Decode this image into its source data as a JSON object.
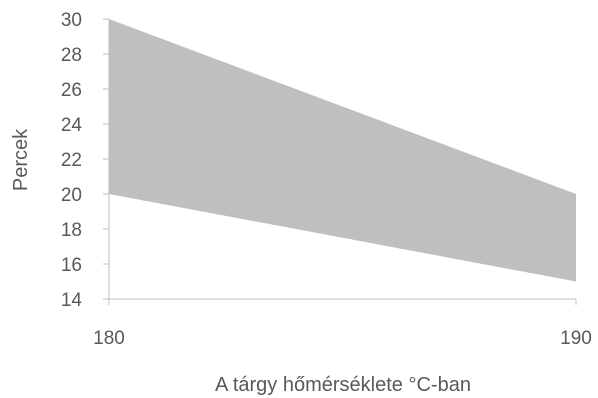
{
  "chart_data": {
    "type": "area",
    "title": "",
    "xlabel": "A tárgy hőmérséklete °C-ban",
    "ylabel": "Percek",
    "x": [
      180,
      190
    ],
    "x_ticks": [
      "180",
      "190"
    ],
    "y_ticks": [
      "14",
      "16",
      "18",
      "20",
      "22",
      "24",
      "26",
      "28",
      "30"
    ],
    "ylim": [
      14,
      30
    ],
    "xlim": [
      180,
      190
    ],
    "band": {
      "lower": [
        20,
        15
      ],
      "upper": [
        30,
        20
      ]
    },
    "fill_color": "#bfbfbf",
    "axis_color": "#bfbfbf",
    "grid": false,
    "legend": "none"
  }
}
